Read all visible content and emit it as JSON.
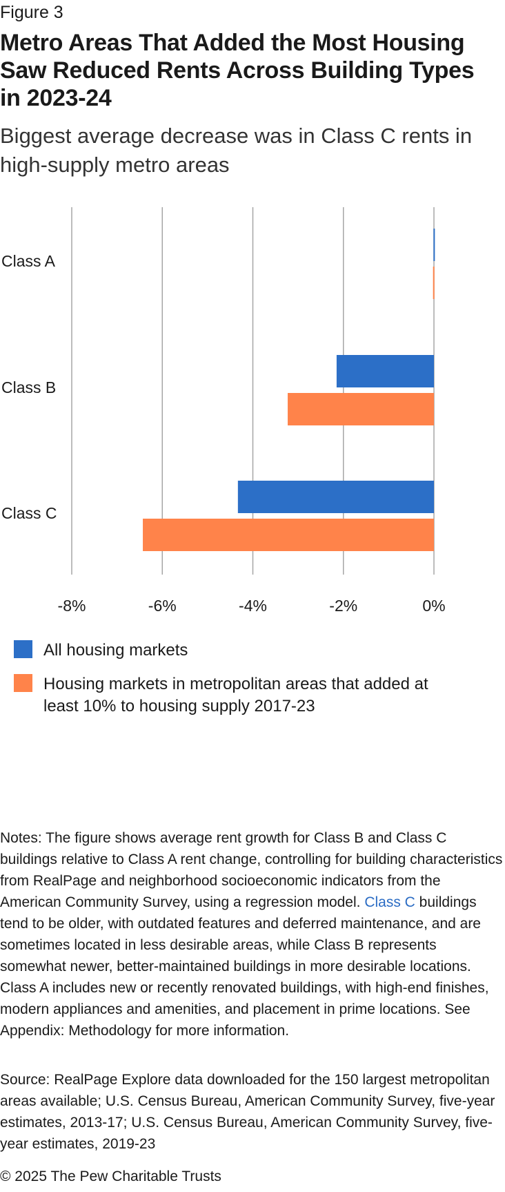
{
  "figure_label": "Figure 3",
  "title": "Metro Areas That Added the Most Housing Saw Reduced Rents Across Building Types in 2023-24",
  "subtitle": "Biggest average decrease was in Class C rents in high-supply metro areas",
  "chart_data": {
    "type": "bar",
    "orientation": "horizontal",
    "categories": [
      "Class A",
      "Class B",
      "Class C"
    ],
    "series": [
      {
        "name": "All housing markets",
        "color": "#2c6fc7",
        "values": [
          -0.01,
          -2.15,
          -4.33
        ]
      },
      {
        "name": "Housing markets in metropolitan areas that added at least 10% to housing supply 2017-23",
        "color": "#ff834a",
        "values": [
          -0.02,
          -3.23,
          -6.43
        ]
      }
    ],
    "xlim": [
      -8,
      0
    ],
    "x_ticks": [
      -8,
      -6,
      -4,
      -2,
      0
    ],
    "x_tick_labels": [
      "-8%",
      "-6%",
      "-4%",
      "-2%",
      "0%"
    ],
    "grid": true,
    "legend_position": "bottom"
  },
  "notes": {
    "before_link": "Notes: The figure shows average rent growth for Class B and Class C buildings relative to Class A rent change, controlling for building characteristics from RealPage and neighborhood socioeconomic indicators from the American Community Survey, using a regression model. ",
    "link_text": "Class C",
    "after_link": " buildings tend to be older, with outdated features and deferred maintenance, and are sometimes located in less desirable areas, while Class B represents somewhat newer, better-maintained buildings in more desirable locations. Class A includes new or recently renovated buildings, with high-end finishes, modern appliances and amenities, and placement in prime locations. See Appendix: Methodology for more information."
  },
  "source": "Source: RealPage Explore data downloaded for the 150 largest metropolitan areas available; U.S. Census Bureau, American Community Survey, five-year estimates, 2013-17; U.S. Census Bureau, American Community Survey, five-year estimates, 2019-23",
  "copyright": "© 2025 The Pew Charitable Trusts"
}
